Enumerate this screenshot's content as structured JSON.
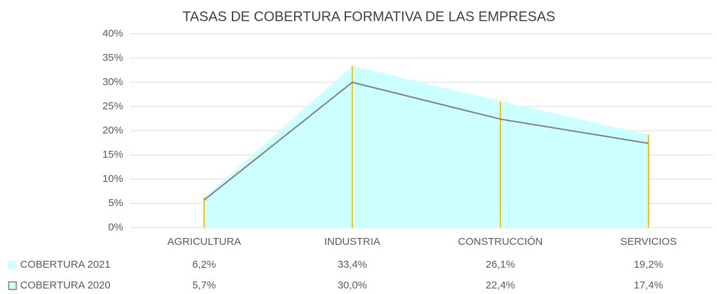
{
  "chart_data": {
    "type": "area",
    "title": "TASAS DE COBERTURA FORMATIVA DE LAS EMPRESAS",
    "categories": [
      "AGRICULTURA",
      "INDUSTRIA",
      "CONSTRUCCIÓN",
      "SERVICIOS"
    ],
    "series": [
      {
        "name": "COBERTURA 2021",
        "color": "#ccffff",
        "values": [
          6.2,
          33.4,
          26.1,
          19.2
        ],
        "value_labels": [
          "6,2%",
          "33,4%",
          "26,1%",
          "19,2%"
        ]
      },
      {
        "name": "COBERTURA 2020",
        "color": "#7f7f7f",
        "values": [
          5.7,
          30.0,
          22.4,
          17.4
        ],
        "value_labels": [
          "5,7%",
          "30,0%",
          "22,4%",
          "17,4%"
        ]
      }
    ],
    "ylim": [
      0,
      40
    ],
    "yticks": [
      {
        "value": 0,
        "label": "0%"
      },
      {
        "value": 5,
        "label": "5%"
      },
      {
        "value": 10,
        "label": "10%"
      },
      {
        "value": 15,
        "label": "15%"
      },
      {
        "value": 20,
        "label": "20%"
      },
      {
        "value": 25,
        "label": "25%"
      },
      {
        "value": 30,
        "label": "30%"
      },
      {
        "value": 35,
        "label": "35%"
      },
      {
        "value": 40,
        "label": "40%"
      }
    ],
    "grid": true,
    "drop_line_color": "#ffc000"
  }
}
